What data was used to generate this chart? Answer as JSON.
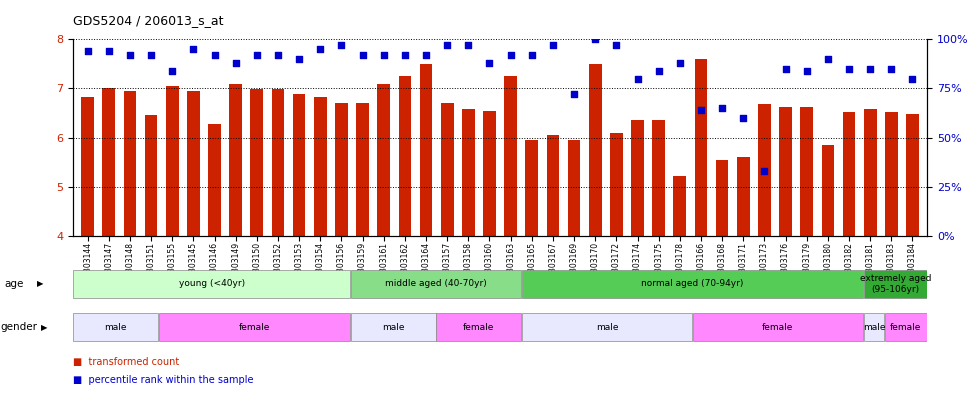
{
  "title": "GDS5204 / 206013_s_at",
  "samples": [
    "GSM1303144",
    "GSM1303147",
    "GSM1303148",
    "GSM1303151",
    "GSM1303155",
    "GSM1303145",
    "GSM1303146",
    "GSM1303149",
    "GSM1303150",
    "GSM1303152",
    "GSM1303153",
    "GSM1303154",
    "GSM1303156",
    "GSM1303159",
    "GSM1303161",
    "GSM1303162",
    "GSM1303164",
    "GSM1303157",
    "GSM1303158",
    "GSM1303160",
    "GSM1303163",
    "GSM1303165",
    "GSM1303167",
    "GSM1303169",
    "GSM1303170",
    "GSM1303172",
    "GSM1303174",
    "GSM1303175",
    "GSM1303178",
    "GSM1303166",
    "GSM1303168",
    "GSM1303171",
    "GSM1303173",
    "GSM1303176",
    "GSM1303179",
    "GSM1303180",
    "GSM1303182",
    "GSM1303181",
    "GSM1303183",
    "GSM1303184"
  ],
  "bar_values": [
    6.82,
    7.0,
    6.95,
    6.45,
    7.05,
    6.95,
    6.28,
    7.1,
    6.98,
    6.98,
    6.88,
    6.82,
    6.7,
    6.7,
    7.1,
    7.25,
    7.5,
    6.7,
    6.58,
    6.55,
    7.25,
    5.95,
    6.05,
    5.95,
    7.5,
    6.1,
    6.35,
    6.35,
    5.22,
    7.6,
    5.55,
    5.6,
    6.68,
    6.62,
    6.62,
    5.85,
    6.52,
    6.58,
    6.52,
    6.48
  ],
  "percentile_values": [
    94,
    94,
    92,
    92,
    84,
    95,
    92,
    88,
    92,
    92,
    90,
    95,
    97,
    92,
    92,
    92,
    92,
    97,
    97,
    88,
    92,
    92,
    97,
    72,
    100,
    97,
    80,
    84,
    88,
    64,
    65,
    60,
    33,
    85,
    84,
    90,
    85,
    85,
    85,
    80
  ],
  "bar_color": "#cc2200",
  "dot_color": "#0000cc",
  "ylim_left": [
    4,
    8
  ],
  "ylim_right": [
    0,
    100
  ],
  "yticks_left": [
    4,
    5,
    6,
    7,
    8
  ],
  "yticks_right": [
    0,
    25,
    50,
    75,
    100
  ],
  "age_groups": [
    {
      "label": "young (<40yr)",
      "start": 0,
      "end": 13,
      "color": "#ccffcc"
    },
    {
      "label": "middle aged (40-70yr)",
      "start": 13,
      "end": 21,
      "color": "#88dd88"
    },
    {
      "label": "normal aged (70-94yr)",
      "start": 21,
      "end": 37,
      "color": "#55cc55"
    },
    {
      "label": "extremely aged\n(95-106yr)",
      "start": 37,
      "end": 40,
      "color": "#33aa33"
    }
  ],
  "gender_groups": [
    {
      "label": "male",
      "start": 0,
      "end": 4,
      "color": "#e8e8ff"
    },
    {
      "label": "female",
      "start": 4,
      "end": 13,
      "color": "#ff88ff"
    },
    {
      "label": "male",
      "start": 13,
      "end": 17,
      "color": "#e8e8ff"
    },
    {
      "label": "female",
      "start": 17,
      "end": 21,
      "color": "#ff88ff"
    },
    {
      "label": "male",
      "start": 21,
      "end": 29,
      "color": "#e8e8ff"
    },
    {
      "label": "female",
      "start": 29,
      "end": 37,
      "color": "#ff88ff"
    },
    {
      "label": "male",
      "start": 37,
      "end": 38,
      "color": "#e8e8ff"
    },
    {
      "label": "female",
      "start": 38,
      "end": 40,
      "color": "#ff88ff"
    }
  ]
}
